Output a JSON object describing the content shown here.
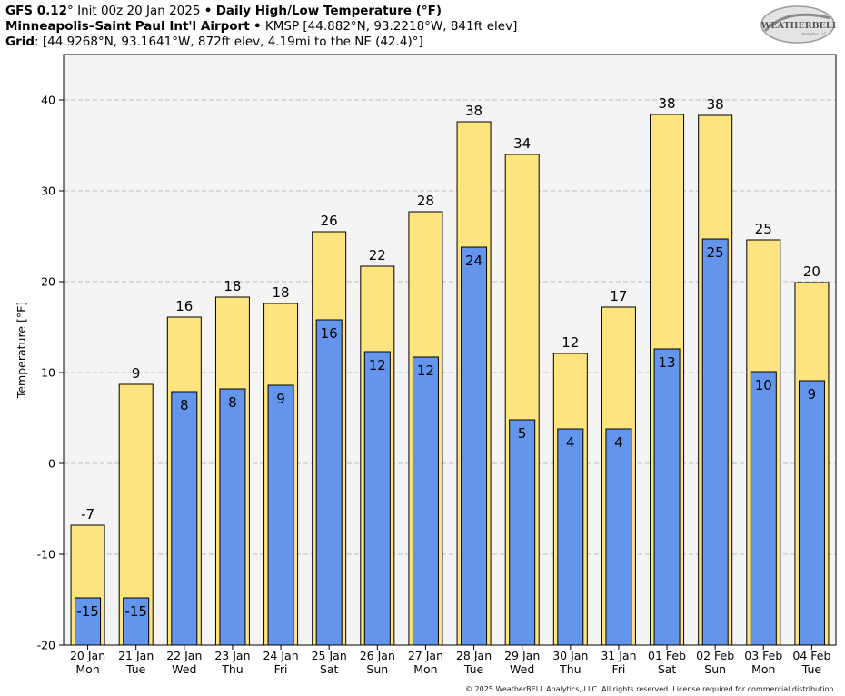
{
  "header": {
    "line1": {
      "model": "GFS 0.12",
      "model_deg": "°",
      "init": " Init 00z 20 Jan 2025 ",
      "bullet": "•",
      "title": "Daily High/Low Temperature (°F)"
    },
    "line2": {
      "station": "Minneapolis–Saint Paul Int'l Airport",
      "bullet": "•",
      "details": " KMSP [44.882°N, 93.2218°W, 841ft elev]"
    },
    "line3": {
      "label": "Grid",
      "details": ": [44.9268°N, 93.1641°W, 872ft elev, 4.19mi to the NE (42.4)°]"
    }
  },
  "logo": {
    "text": "WEATHERBELL",
    "subtext": "Analytics LLC"
  },
  "footer": "© 2025 WeatherBELL Analytics, LLC. All rights reserved. License required for commercial distribution.",
  "colors": {
    "high_fill": "#fde47f",
    "low_fill": "#6495ed",
    "plot_bg": "#f4f4f4",
    "grid": "#bbbbbb",
    "bar_stroke": "#000000"
  },
  "chart_data": {
    "type": "bar",
    "title": "Daily High/Low Temperature (°F)",
    "ylabel": "Temperature [°F]",
    "xlabel": "",
    "ylim": [
      -20,
      45
    ],
    "yticks": [
      -20,
      -10,
      0,
      10,
      20,
      30,
      40
    ],
    "grid": true,
    "categories": [
      "20 Jan",
      "21 Jan",
      "22 Jan",
      "23 Jan",
      "24 Jan",
      "25 Jan",
      "26 Jan",
      "27 Jan",
      "28 Jan",
      "29 Jan",
      "30 Jan",
      "31 Jan",
      "01 Feb",
      "02 Feb",
      "03 Feb",
      "04 Feb"
    ],
    "weekdays": [
      "Mon",
      "Tue",
      "Wed",
      "Thu",
      "Fri",
      "Sat",
      "Sun",
      "Mon",
      "Tue",
      "Wed",
      "Thu",
      "Fri",
      "Sat",
      "Sun",
      "Mon",
      "Tue"
    ],
    "series": [
      {
        "name": "High",
        "values": [
          -6.8,
          8.7,
          16.1,
          18.3,
          17.6,
          25.5,
          21.7,
          27.7,
          37.6,
          34.0,
          12.1,
          17.2,
          38.4,
          38.3,
          24.6,
          19.9
        ],
        "labels": [
          "-7",
          "9",
          "16",
          "18",
          "18",
          "26",
          "22",
          "28",
          "38",
          "34",
          "12",
          "17",
          "38",
          "38",
          "25",
          "20"
        ]
      },
      {
        "name": "Low",
        "values": [
          -14.8,
          -14.8,
          7.9,
          8.2,
          8.6,
          15.8,
          12.3,
          11.7,
          23.8,
          4.8,
          3.8,
          3.8,
          12.6,
          24.7,
          10.1,
          9.1
        ],
        "labels": [
          "-15",
          "-15",
          "8",
          "8",
          "9",
          "16",
          "12",
          "12",
          "24",
          "5",
          "4",
          "4",
          "13",
          "25",
          "10",
          "9"
        ]
      }
    ]
  }
}
